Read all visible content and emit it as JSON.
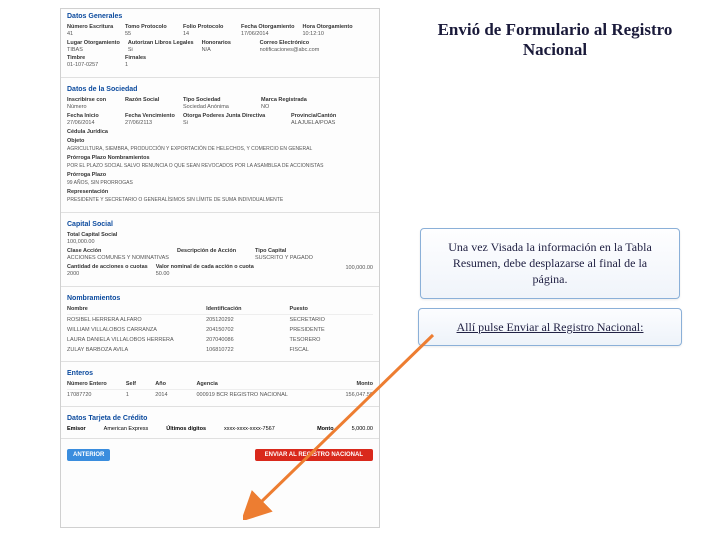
{
  "colors": {
    "section_title": "#0b4a9e",
    "btn_prev": "#3a8dde",
    "btn_send": "#d9291c",
    "arrow": "#ed7d31",
    "callout_border": "#8bb0d8"
  },
  "right": {
    "title": "Envió de Formulario al Registro Nacional",
    "callout1": "Una vez Visada la información en la Tabla Resumen, debe desplazarse al final de la página.",
    "callout2": "Allí pulse Enviar al Registro Nacional:"
  },
  "sec_datos": {
    "title": "Datos Generales",
    "numero_escritura_lbl": "Número Escritura",
    "numero_escritura_val": "41",
    "tomo_lbl": "Tomo Protocolo",
    "tomo_val": "55",
    "folio_lbl": "Folio Protocolo",
    "folio_val": "14",
    "fecha_otorg_lbl": "Fecha Otorgamiento",
    "fecha_otorg_val": "17/06/2014",
    "hora_otorg_lbl": "Hora Otorgamiento",
    "hora_otorg_val": "10:12:10",
    "lugar_lbl": "Lugar Otorgamiento",
    "lugar_val": "TIBAS",
    "autorizan_lbl": "Autorizan Libros Legales",
    "autorizan_val": "Si",
    "honorarios_lbl": "Honorarios",
    "honorarios_val": "N/A",
    "correo_lbl": "Correo Electrónico",
    "correo_val": "notificaciones@abc.com",
    "timbre_lbl": "Timbre",
    "timbre_val": "01-107-0257",
    "firnales_lbl": "Firnales",
    "firnales_val": "1"
  },
  "sec_sociedad": {
    "title": "Datos de la Sociedad",
    "inscribirse_lbl": "Inscribirse con",
    "inscribirse_val": "Número",
    "razon_lbl": "Razón Social",
    "tipo_sociedad_lbl": "Tipo Sociedad",
    "tipo_sociedad_val": "Sociedad Anónima",
    "marca_lbl": "Marca Registrada",
    "marca_val": "NO",
    "fecha_inicio_lbl": "Fecha Inicio",
    "fecha_inicio_val": "27/06/2014",
    "fecha_venc_lbl": "Fecha Vencimiento",
    "fecha_venc_val": "27/06/2113",
    "otorga_lbl": "Otorga Poderes Junta Directiva",
    "otorga_val": "Si",
    "provincia_lbl": "Provincia/Cantón",
    "provincia_val": "ALAJUELA/POAS",
    "cedula_lbl": "Cédula Jurídica",
    "objeto_lbl": "Objeto",
    "objeto_val": "AGRICULTURA, SIEMBRA, PRODUCCIÓN Y EXPORTACIÓN DE HELECHOS, Y COMERCIO EN GENERAL",
    "prorroga_lbl": "Prórroga Plazo Nombramientos",
    "prorroga_val": "POR EL PLAZO SOCIAL SALVO RENUNCIA O QUE SEAN REVOCADOS POR LA ASAMBLEA DE ACCIONISTAS",
    "prorroga_plazo_lbl": "Prórroga Plazo",
    "prorroga_plazo_val": "99 AÑOS, SIN PRORROGAS",
    "repres_lbl": "Representación",
    "repres_val": "PRESIDENTE Y SECRETARIO O GENERALÍSIMOS SIN LÍMITE DE SUMA INDIVIDUALMENTE"
  },
  "sec_capital": {
    "title": "Capital Social",
    "total_lbl": "Total Capital Social",
    "total_val": "100,000.00",
    "clase_lbl": "Clase Acción",
    "clase_val": "ACCIONES COMUNES Y NOMINATIVAS",
    "desc_lbl": "Descripción de Acción",
    "tipo_cap_lbl": "Tipo Capital",
    "tipo_cap_val": "SUSCRITO Y PAGADO",
    "cant_lbl": "Cantidad de acciones o cuotas",
    "cant_val": "2000",
    "valor_lbl": "Valor nominal de cada acción o cuota",
    "valor_val": "50.00",
    "subtotal_val": "100,000.00"
  },
  "sec_nomb": {
    "title": "Nombramientos",
    "col_nombre": "Nombre",
    "col_id": "Identificación",
    "col_puesto": "Puesto",
    "rows": [
      {
        "n": "ROSIBEL HERRERA ALFARO",
        "i": "205120292",
        "p": "SECRETARIO"
      },
      {
        "n": "WILLIAM VILLALOBOS CARRANZA",
        "i": "204150702",
        "p": "PRESIDENTE"
      },
      {
        "n": "LAURA DANIELA VILLALOBOS HERRERA",
        "i": "207040086",
        "p": "TESORERO"
      },
      {
        "n": "ZULAY BARBOZA AVILA",
        "i": "106810722",
        "p": "FISCAL"
      }
    ]
  },
  "sec_entero": {
    "title": "Enteros",
    "col_num": "Número Entero",
    "col_self": "Self",
    "col_ano": "Año",
    "col_agencia": "Agencia",
    "col_monto": "Monto",
    "rows": [
      {
        "num": "17087720",
        "self": "1",
        "ano": "2014",
        "ag": "000919 BCR REGISTRO NACIONAL",
        "monto": "156,047.50"
      }
    ]
  },
  "sec_cc": {
    "title": "Datos Tarjeta de Crédito",
    "emisor_lbl": "Emisor",
    "emisor_val": "American Express",
    "digitos_lbl": "Últimos dígitos",
    "digitos_val": "xxxx-xxxx-xxxx-7567",
    "monto_lbl": "Monto",
    "monto_val": "5,000.00"
  },
  "buttons": {
    "prev": "ANTERIOR",
    "send": "ENVIAR AL REGISTRO NACIONAL"
  }
}
